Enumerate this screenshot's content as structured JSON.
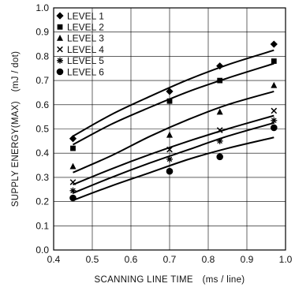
{
  "chart_data": {
    "type": "scatter",
    "title": "",
    "xlabel": "SCANNING LINE TIME　(ms / line)",
    "ylabel": "SUPPLY ENERGY(MAX)　(mJ / dot)",
    "xlim": [
      0.4,
      1.0
    ],
    "ylim": [
      0.0,
      1.0
    ],
    "x_ticks": [
      "0.4",
      "0.5",
      "0.6",
      "0.7",
      "0.8",
      "0.9",
      "1.0"
    ],
    "y_ticks": [
      "0.0",
      "0.1",
      "0.2",
      "0.3",
      "0.4",
      "0.5",
      "0.6",
      "0.7",
      "0.8",
      "0.9",
      "1.0"
    ],
    "x_tick_values": [
      0.4,
      0.5,
      0.6,
      0.7,
      0.8,
      0.9,
      1.0
    ],
    "y_tick_values": [
      0.0,
      0.1,
      0.2,
      0.3,
      0.4,
      0.5,
      0.6,
      0.7,
      0.8,
      0.9,
      1.0
    ],
    "grid": true,
    "legend_position": "top-left",
    "series": [
      {
        "name": "LEVEL 1",
        "marker": "diamond-icon",
        "points": [
          [
            0.45,
            0.46
          ],
          [
            0.7,
            0.655
          ],
          [
            0.83,
            0.76
          ],
          [
            0.97,
            0.85
          ]
        ],
        "fit": [
          [
            0.45,
            0.47
          ],
          [
            0.55,
            0.56
          ],
          [
            0.65,
            0.635
          ],
          [
            0.75,
            0.705
          ],
          [
            0.85,
            0.765
          ],
          [
            0.97,
            0.825
          ]
        ]
      },
      {
        "name": "LEVEL 2",
        "marker": "square-icon",
        "points": [
          [
            0.45,
            0.42
          ],
          [
            0.7,
            0.615
          ],
          [
            0.83,
            0.7
          ],
          [
            0.97,
            0.78
          ]
        ],
        "fit": [
          [
            0.45,
            0.435
          ],
          [
            0.55,
            0.52
          ],
          [
            0.65,
            0.59
          ],
          [
            0.75,
            0.655
          ],
          [
            0.85,
            0.71
          ],
          [
            0.97,
            0.77
          ]
        ]
      },
      {
        "name": "LEVEL 3",
        "marker": "triangle-icon",
        "points": [
          [
            0.45,
            0.345
          ],
          [
            0.7,
            0.475
          ],
          [
            0.83,
            0.57
          ],
          [
            0.97,
            0.68
          ]
        ],
        "fit": [
          [
            0.45,
            0.32
          ],
          [
            0.55,
            0.39
          ],
          [
            0.65,
            0.47
          ],
          [
            0.75,
            0.54
          ],
          [
            0.85,
            0.6
          ],
          [
            0.97,
            0.655
          ]
        ]
      },
      {
        "name": "LEVEL 4",
        "marker": "x-mark-icon",
        "points": [
          [
            0.45,
            0.28
          ],
          [
            0.7,
            0.415
          ],
          [
            0.83,
            0.495
          ],
          [
            0.97,
            0.575
          ]
        ],
        "fit": [
          [
            0.45,
            0.27
          ],
          [
            0.55,
            0.335
          ],
          [
            0.65,
            0.395
          ],
          [
            0.75,
            0.45
          ],
          [
            0.85,
            0.5
          ],
          [
            0.97,
            0.555
          ]
        ]
      },
      {
        "name": "LEVEL 5",
        "marker": "asterisk-icon",
        "points": [
          [
            0.45,
            0.245
          ],
          [
            0.7,
            0.375
          ],
          [
            0.83,
            0.45
          ],
          [
            0.97,
            0.535
          ]
        ],
        "fit": [
          [
            0.45,
            0.235
          ],
          [
            0.55,
            0.3
          ],
          [
            0.65,
            0.36
          ],
          [
            0.75,
            0.415
          ],
          [
            0.85,
            0.47
          ],
          [
            0.97,
            0.525
          ]
        ]
      },
      {
        "name": "LEVEL 6",
        "marker": "circle-icon",
        "points": [
          [
            0.45,
            0.215
          ],
          [
            0.7,
            0.325
          ],
          [
            0.83,
            0.385
          ],
          [
            0.97,
            0.505
          ]
        ],
        "fit": [
          [
            0.45,
            0.205
          ],
          [
            0.55,
            0.265
          ],
          [
            0.65,
            0.32
          ],
          [
            0.75,
            0.375
          ],
          [
            0.85,
            0.42
          ],
          [
            0.97,
            0.465
          ]
        ]
      }
    ]
  }
}
